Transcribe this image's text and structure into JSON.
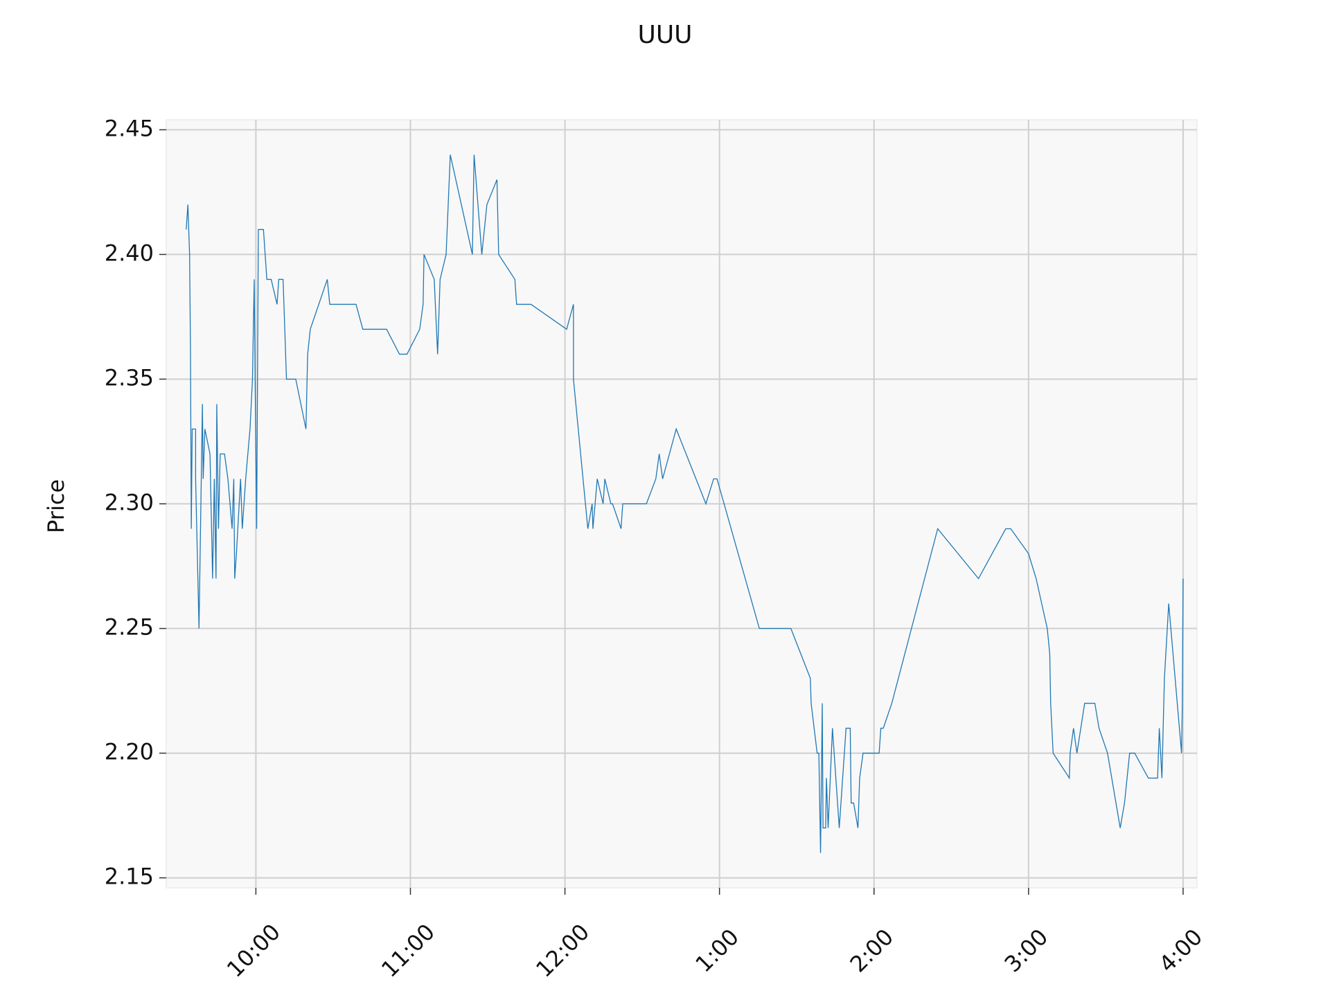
{
  "chart_data": {
    "type": "line",
    "title": "UUU",
    "y_label": "Price",
    "color": "#1f77b4",
    "grid": true,
    "x": [
      9.549,
      9.56,
      9.571,
      9.577,
      9.582,
      9.588,
      9.61,
      9.61,
      9.632,
      9.654,
      9.659,
      9.67,
      9.703,
      9.72,
      9.731,
      9.742,
      9.747,
      9.758,
      9.769,
      9.797,
      9.819,
      9.846,
      9.857,
      9.863,
      9.874,
      9.901,
      9.912,
      9.934,
      9.962,
      9.978,
      9.989,
      9.995,
      10.005,
      10.016,
      10.049,
      10.071,
      10.099,
      10.137,
      10.148,
      10.176,
      10.198,
      10.258,
      10.324,
      10.335,
      10.352,
      10.462,
      10.478,
      10.648,
      10.692,
      10.846,
      10.929,
      10.978,
      11.06,
      11.082,
      11.088,
      11.154,
      11.176,
      11.192,
      11.231,
      11.258,
      11.401,
      11.412,
      11.462,
      11.495,
      11.56,
      11.571,
      11.676,
      11.687,
      11.78,
      12.011,
      12.055,
      12.055,
      12.148,
      12.176,
      12.181,
      12.209,
      12.247,
      12.258,
      12.297,
      12.308,
      12.363,
      12.374,
      12.527,
      12.588,
      12.61,
      12.632,
      12.72,
      12.912,
      12.962,
      12.984,
      13.258,
      13.462,
      13.588,
      13.593,
      13.632,
      13.643,
      13.654,
      13.665,
      13.67,
      13.687,
      13.692,
      13.703,
      13.731,
      13.775,
      13.819,
      13.846,
      13.852,
      13.868,
      13.896,
      13.907,
      13.929,
      14.033,
      14.044,
      14.06,
      14.115,
      14.412,
      14.676,
      14.852,
      14.885,
      15.0,
      15.049,
      15.121,
      15.137,
      15.143,
      15.159,
      15.264,
      15.269,
      15.291,
      15.313,
      15.363,
      15.429,
      15.456,
      15.511,
      15.593,
      15.621,
      15.654,
      15.687,
      15.775,
      15.835,
      15.846,
      15.863,
      15.879,
      15.907,
      15.99,
      15.995,
      16.0
    ],
    "values": [
      2.41,
      2.42,
      2.4,
      2.36,
      2.29,
      2.33,
      2.33,
      2.31,
      2.25,
      2.34,
      2.31,
      2.33,
      2.32,
      2.27,
      2.31,
      2.27,
      2.34,
      2.29,
      2.32,
      2.32,
      2.31,
      2.29,
      2.31,
      2.27,
      2.28,
      2.31,
      2.29,
      2.31,
      2.33,
      2.35,
      2.39,
      2.35,
      2.29,
      2.41,
      2.41,
      2.39,
      2.39,
      2.38,
      2.39,
      2.39,
      2.35,
      2.35,
      2.33,
      2.36,
      2.37,
      2.39,
      2.38,
      2.38,
      2.37,
      2.37,
      2.36,
      2.36,
      2.37,
      2.38,
      2.4,
      2.39,
      2.36,
      2.39,
      2.4,
      2.44,
      2.4,
      2.44,
      2.4,
      2.42,
      2.43,
      2.4,
      2.39,
      2.38,
      2.38,
      2.37,
      2.38,
      2.35,
      2.29,
      2.3,
      2.29,
      2.31,
      2.3,
      2.31,
      2.3,
      2.3,
      2.29,
      2.3,
      2.3,
      2.31,
      2.32,
      2.31,
      2.33,
      2.3,
      2.31,
      2.31,
      2.25,
      2.25,
      2.23,
      2.22,
      2.2,
      2.2,
      2.16,
      2.22,
      2.17,
      2.17,
      2.19,
      2.17,
      2.21,
      2.17,
      2.21,
      2.21,
      2.18,
      2.18,
      2.17,
      2.19,
      2.2,
      2.2,
      2.21,
      2.21,
      2.22,
      2.29,
      2.27,
      2.29,
      2.29,
      2.28,
      2.27,
      2.25,
      2.24,
      2.22,
      2.2,
      2.19,
      2.2,
      2.21,
      2.2,
      2.22,
      2.22,
      2.21,
      2.2,
      2.17,
      2.18,
      2.2,
      2.2,
      2.19,
      2.19,
      2.21,
      2.19,
      2.23,
      2.26,
      2.2,
      2.22,
      2.27
    ],
    "xlim": [
      9.42,
      16.09
    ],
    "xticks": [
      {
        "value": 10,
        "label": "10:00"
      },
      {
        "value": 11,
        "label": "11:00"
      },
      {
        "value": 12,
        "label": "12:00"
      },
      {
        "value": 13,
        "label": "1:00"
      },
      {
        "value": 14,
        "label": "2:00"
      },
      {
        "value": 15,
        "label": "3:00"
      },
      {
        "value": 16,
        "label": "4:00"
      }
    ],
    "ylim": [
      2.146,
      2.454
    ],
    "yticks": [
      2.15,
      {
        "value": 2.2,
        "label": "2.20"
      },
      2.25,
      {
        "value": 2.3,
        "label": "2.30"
      },
      2.35,
      {
        "value": 2.4,
        "label": "2.40"
      },
      2.45
    ]
  }
}
